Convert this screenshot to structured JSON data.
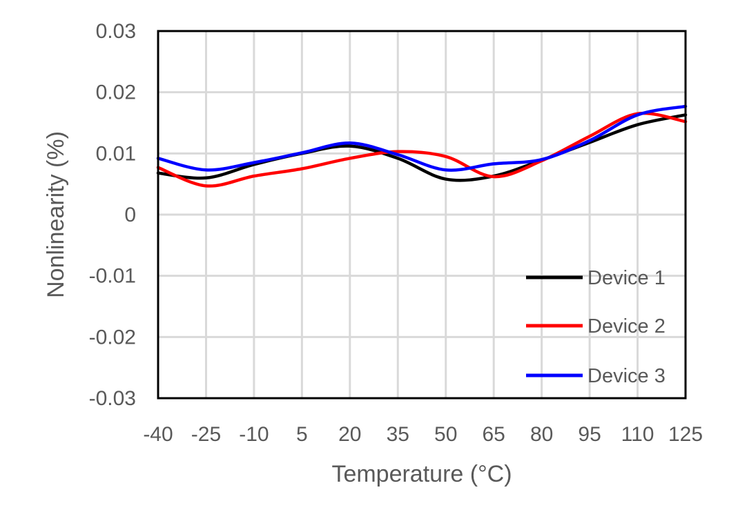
{
  "chart_data": {
    "type": "line",
    "title": "",
    "xlabel": "Temperature (°C)",
    "ylabel": "Nonlinearity (%)",
    "x": [
      -40,
      -25,
      -10,
      5,
      20,
      35,
      50,
      65,
      80,
      95,
      110,
      125
    ],
    "xlim": [
      -40,
      125
    ],
    "ylim": [
      -0.03,
      0.03
    ],
    "x_tick_labels": [
      "-40",
      "-25",
      "-10",
      "5",
      "20",
      "35",
      "50",
      "65",
      "80",
      "95",
      "110",
      "125"
    ],
    "y_ticks": [
      0.03,
      0.02,
      0.01,
      0,
      -0.01,
      -0.02,
      -0.03
    ],
    "y_tick_labels": [
      "0.03",
      "0.02",
      "0.01",
      "0",
      "-0.01",
      "-0.02",
      "-0.03"
    ],
    "grid": true,
    "legend_position": "bottom-right",
    "series": [
      {
        "name": "Device 1",
        "color": "#000000",
        "values": [
          0.0068,
          0.006,
          0.0082,
          0.01,
          0.0112,
          0.0092,
          0.0058,
          0.0063,
          0.0089,
          0.0118,
          0.0147,
          0.0163
        ]
      },
      {
        "name": "Device 2",
        "color": "#ff0000",
        "values": [
          0.0077,
          0.0047,
          0.0063,
          0.0075,
          0.0092,
          0.0103,
          0.0095,
          0.0062,
          0.0088,
          0.0128,
          0.0165,
          0.0152
        ]
      },
      {
        "name": "Device 3",
        "color": "#0000ff",
        "values": [
          0.0092,
          0.0073,
          0.0085,
          0.0101,
          0.0117,
          0.0098,
          0.0073,
          0.0083,
          0.009,
          0.0121,
          0.0163,
          0.0177
        ]
      }
    ]
  }
}
